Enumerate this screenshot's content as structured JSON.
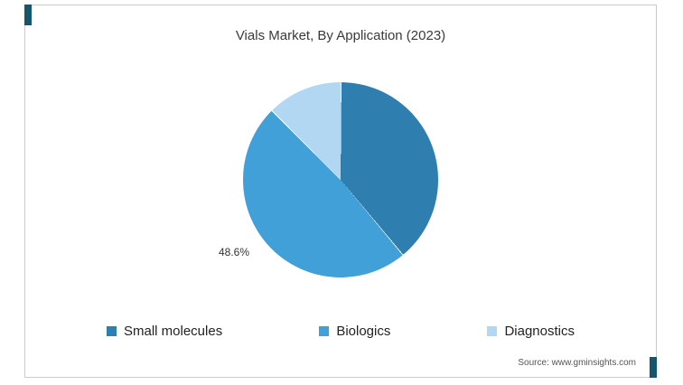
{
  "chart_data": {
    "type": "pie",
    "title": "Vials Market, By Application (2023)",
    "legend_position": "bottom",
    "start_angle_deg": 0,
    "slices": [
      {
        "label": "Small molecules",
        "value": 38.9,
        "color": "#2e7eb0",
        "data_label": ""
      },
      {
        "label": "Biologics",
        "value": 48.6,
        "color": "#41a0d8",
        "data_label": "48.6%"
      },
      {
        "label": "Diagnostics",
        "value": 12.5,
        "color": "#b2d7f2",
        "data_label": ""
      }
    ]
  },
  "source": "Source: www.gminsights.com",
  "colors": {
    "accent_corner": "#14566b",
    "card_border": "#cccccc",
    "title_text": "#3a3a3a",
    "legend_text": "#222222",
    "source_text": "#555555"
  }
}
